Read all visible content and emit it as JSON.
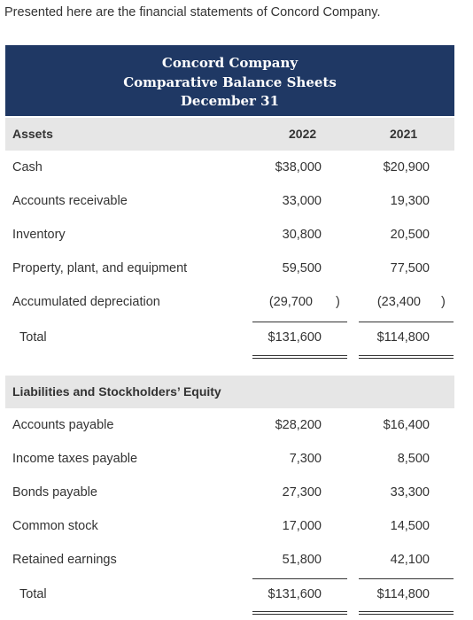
{
  "intro": "Presented here are the financial statements of Concord Company.",
  "header": {
    "company": "Concord Company",
    "statement": "Comparative Balance Sheets",
    "date": "December 31"
  },
  "assets_section": {
    "label": "Assets",
    "col_2022": "2022",
    "col_2021": "2021",
    "rows": [
      {
        "label": "Cash",
        "v2022": "$38,000",
        "v2021": "$20,900"
      },
      {
        "label": "Accounts receivable",
        "v2022": "33,000",
        "v2021": "19,300"
      },
      {
        "label": "Inventory",
        "v2022": "30,800",
        "v2021": "20,500"
      },
      {
        "label": "Property, plant, and equipment",
        "v2022": "59,500",
        "v2021": "77,500"
      },
      {
        "label": "Accumulated depreciation",
        "v2022": "(29,700",
        "v2021": "(23,400",
        "paren": ")"
      }
    ],
    "total": {
      "label": "Total",
      "v2022": "$131,600",
      "v2021": "$114,800"
    }
  },
  "liabilities_section": {
    "label": "Liabilities and Stockholders’ Equity",
    "rows": [
      {
        "label": "Accounts payable",
        "v2022": "$28,200",
        "v2021": "$16,400"
      },
      {
        "label": "Income taxes payable",
        "v2022": "7,300",
        "v2021": "8,500"
      },
      {
        "label": "Bonds payable",
        "v2022": "27,300",
        "v2021": "33,300"
      },
      {
        "label": "Common stock",
        "v2022": "17,000",
        "v2021": "14,500"
      },
      {
        "label": "Retained earnings",
        "v2022": "51,800",
        "v2021": "42,100"
      }
    ],
    "total": {
      "label": "Total",
      "v2022": "$131,600",
      "v2021": "$114,800"
    }
  }
}
